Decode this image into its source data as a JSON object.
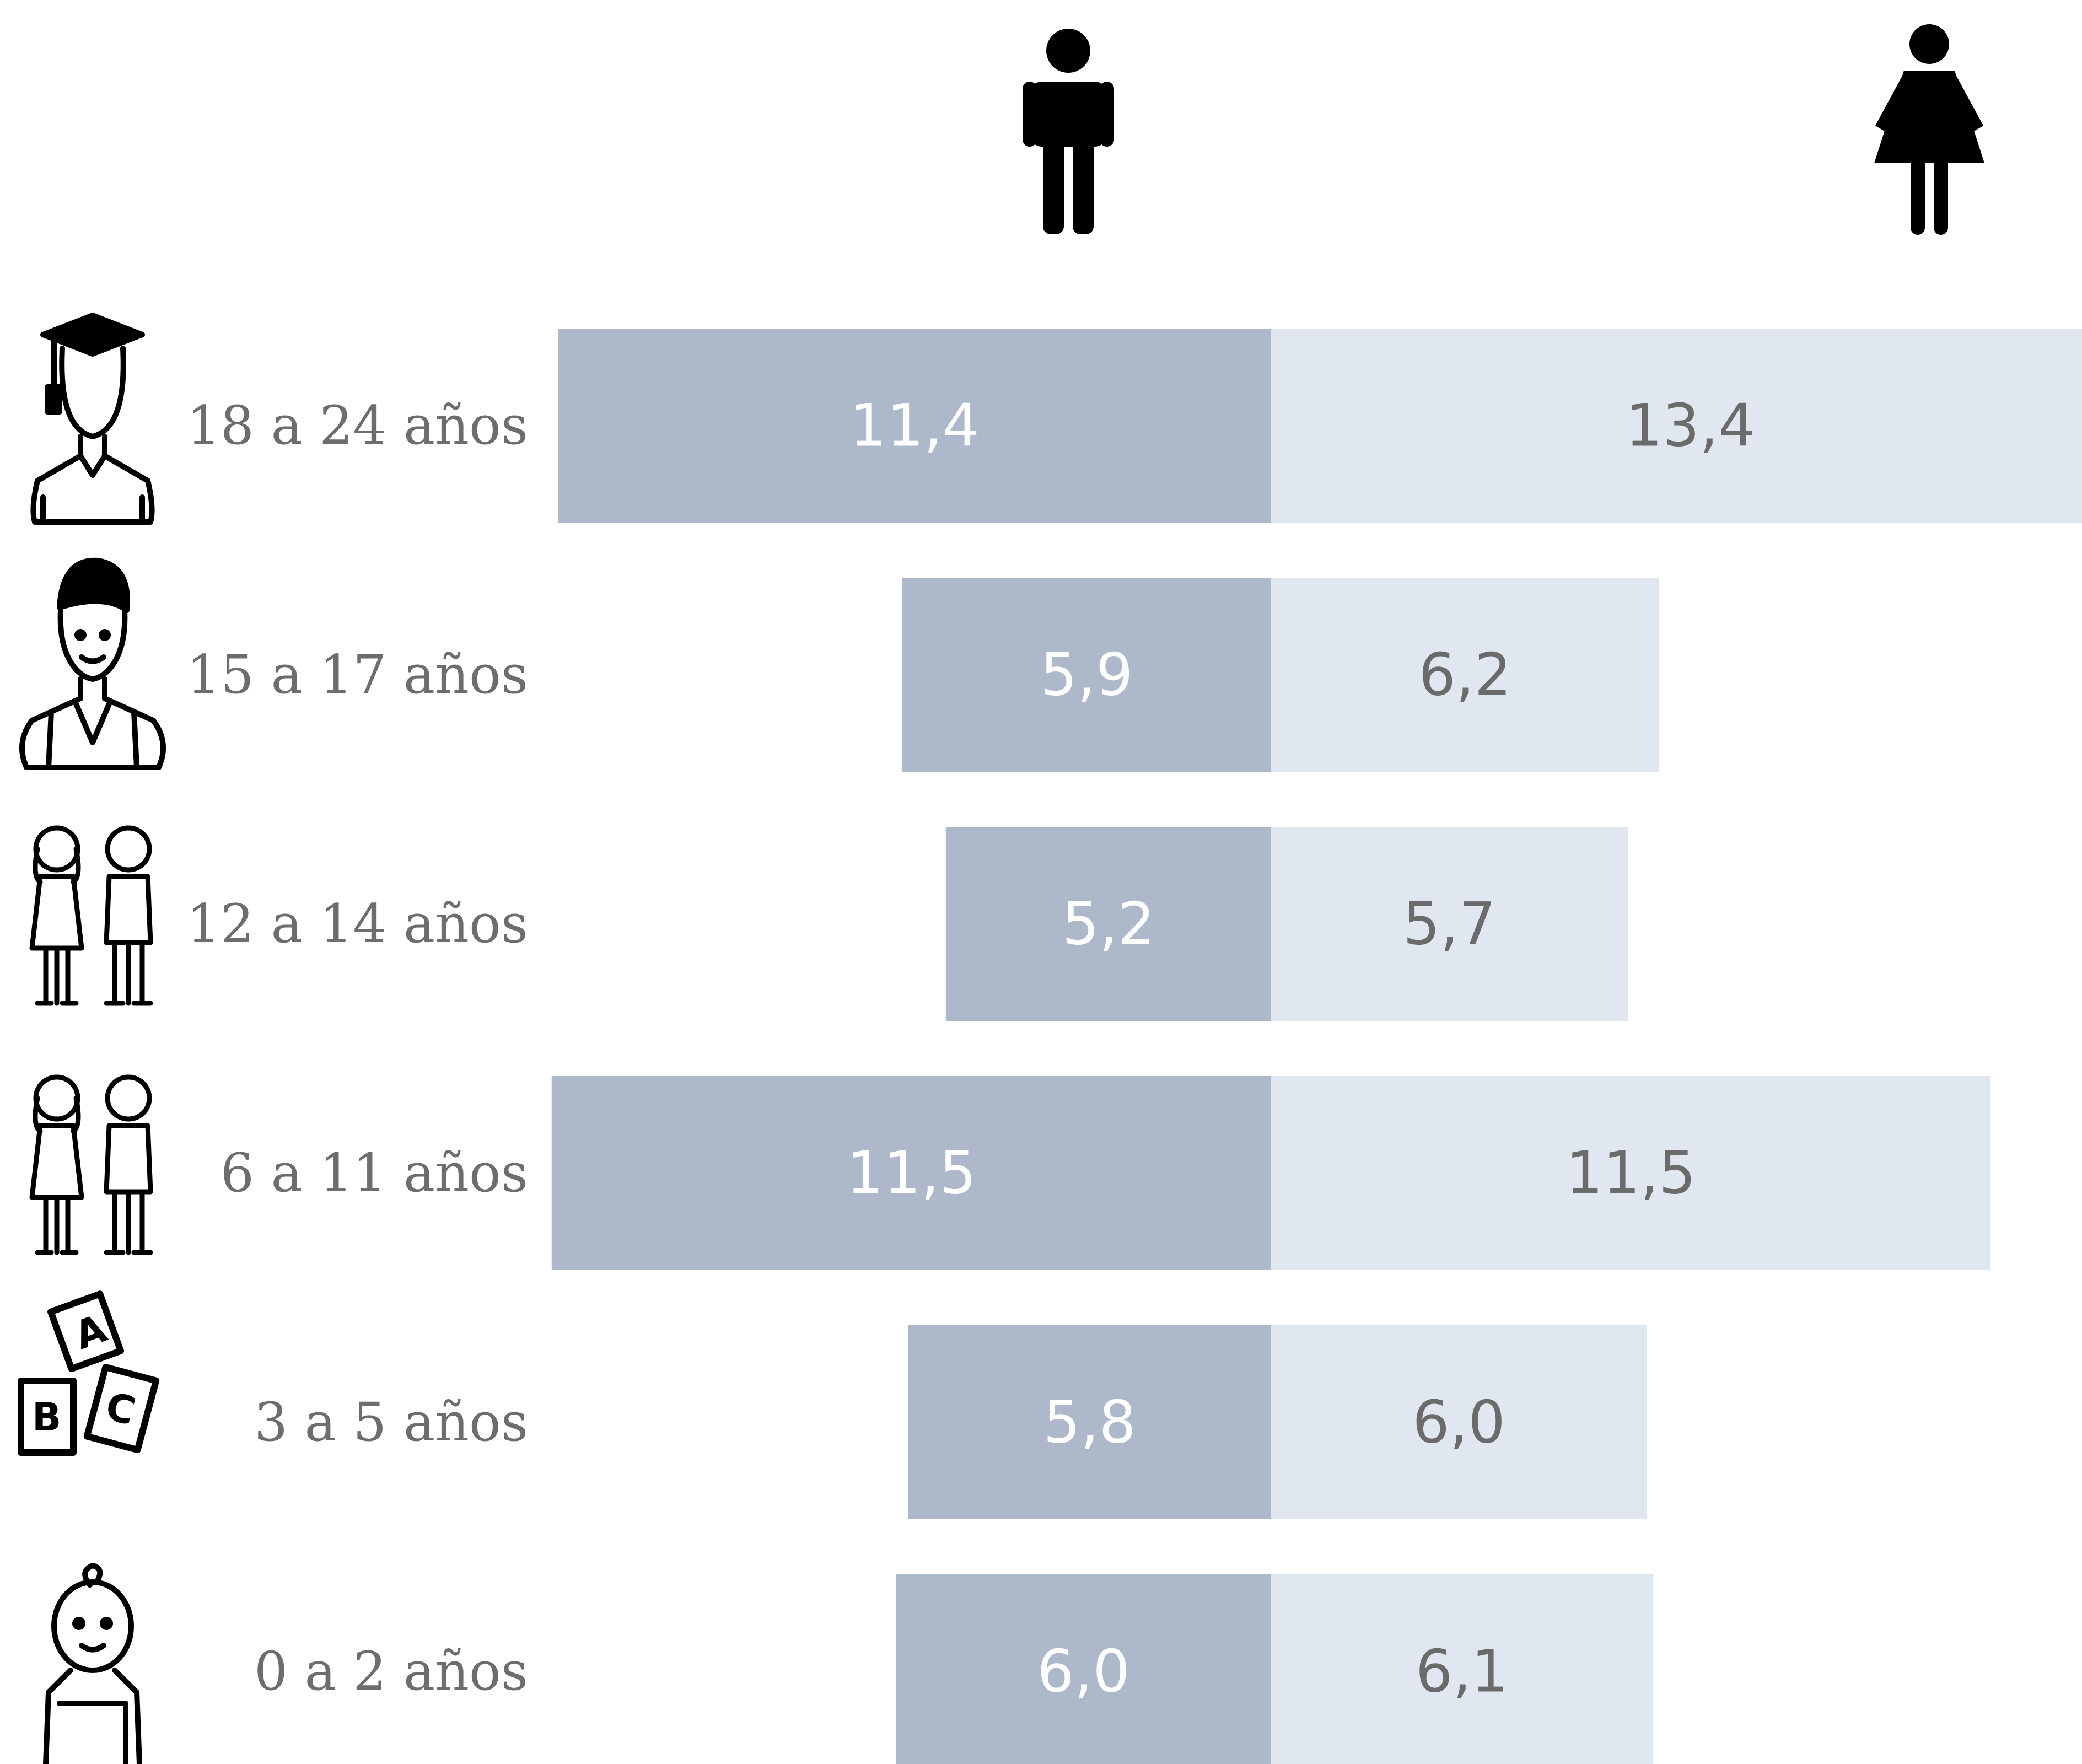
{
  "colors": {
    "male_bar": "#adb8ca",
    "female_bar": "#e1e7f0",
    "male_value_text": "#ffffff",
    "female_value_text": "#6b6b6b",
    "category_text": "#6d6d6d",
    "icon": "#000000"
  },
  "header_icons": {
    "male": "man-icon",
    "female": "woman-icon"
  },
  "chart_data": {
    "type": "bar",
    "orientation": "horizontal-diverging",
    "categories": [
      "18 a 24 años",
      "15 a 17 años",
      "12 a 14 años",
      "6 a 11 años",
      "3 a 5 años",
      "0 a 2 años"
    ],
    "category_icons": [
      "graduate-icon",
      "teenager-icon",
      "children-icon",
      "school-children-icon",
      "abc-blocks-icon",
      "baby-icon"
    ],
    "series": [
      {
        "key": "male",
        "values": [
          11.4,
          5.9,
          5.2,
          11.5,
          5.8,
          6.0
        ],
        "labels": [
          "11,4",
          "5,9",
          "5,2",
          "11,5",
          "5,8",
          "6,0"
        ]
      },
      {
        "key": "female",
        "values": [
          13.4,
          6.2,
          5.7,
          11.5,
          6.0,
          6.1
        ],
        "labels": [
          "13,4",
          "6,2",
          "5,7",
          "11,5",
          "6,0",
          "6,1"
        ]
      }
    ],
    "grid": false,
    "legend": "icons above series"
  }
}
